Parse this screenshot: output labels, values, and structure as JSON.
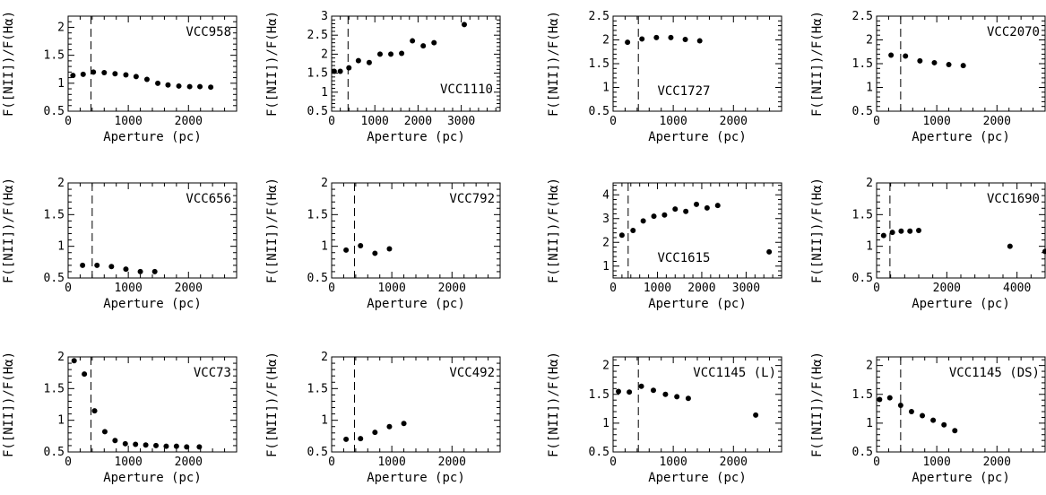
{
  "chart_data": [
    {
      "type": "scatter",
      "title": "VCC958",
      "xlabel": "Aperture (pc)",
      "ylabel": "F([NII])/F(Hα)",
      "xlim": [
        0,
        2800
      ],
      "ylim": [
        0.5,
        2.2
      ],
      "xticks": [
        0,
        1000,
        2000
      ],
      "yticks": [
        0.5,
        1,
        1.5,
        2
      ],
      "ytick_labels": [
        "0.5",
        "1",
        "1.5",
        "2"
      ],
      "vline": 380,
      "label_position": "top-right",
      "x": [
        80,
        250,
        420,
        600,
        780,
        960,
        1130,
        1310,
        1490,
        1660,
        1840,
        2020,
        2190,
        2370
      ],
      "y": [
        1.14,
        1.16,
        1.2,
        1.19,
        1.17,
        1.15,
        1.12,
        1.07,
        1.0,
        0.97,
        0.95,
        0.94,
        0.94,
        0.93
      ]
    },
    {
      "type": "scatter",
      "title": "VCC1110",
      "xlabel": "Aperture (pc)",
      "ylabel": "F([NII])/F(Hα)",
      "xlim": [
        0,
        3900
      ],
      "ylim": [
        0.5,
        3.0
      ],
      "xticks": [
        0,
        1000,
        2000,
        3000
      ],
      "yticks": [
        0.5,
        1,
        1.5,
        2,
        2.5,
        3
      ],
      "ytick_labels": [
        "0.5",
        "1",
        "1.5",
        "2",
        "2.5",
        "3"
      ],
      "vline": 380,
      "label_position": "bottom-right",
      "x": [
        60,
        200,
        400,
        620,
        870,
        1120,
        1370,
        1620,
        1870,
        2120,
        2370,
        3070
      ],
      "y": [
        1.55,
        1.55,
        1.64,
        1.83,
        1.78,
        2.0,
        2.0,
        2.02,
        2.35,
        2.22,
        2.3,
        2.78
      ]
    },
    {
      "type": "scatter",
      "title": "VCC1727",
      "xlabel": "Aperture (pc)",
      "ylabel": "F([NII])/F(Hα)",
      "xlim": [
        0,
        2800
      ],
      "ylim": [
        0.5,
        2.5
      ],
      "xticks": [
        0,
        1000,
        2000
      ],
      "yticks": [
        0.5,
        1,
        1.5,
        2,
        2.5
      ],
      "ytick_labels": [
        "0.5",
        "1",
        "1.5",
        "2",
        "2.5"
      ],
      "vline": 420,
      "label_position": "bottom-middle",
      "x": [
        240,
        480,
        720,
        960,
        1200,
        1440
      ],
      "y": [
        1.95,
        2.02,
        2.05,
        2.05,
        2.01,
        1.98
      ]
    },
    {
      "type": "scatter",
      "title": "VCC2070",
      "xlabel": "Aperture (pc)",
      "ylabel": "F([NII])/F(Hα)",
      "xlim": [
        0,
        2800
      ],
      "ylim": [
        0.5,
        2.5
      ],
      "xticks": [
        0,
        1000,
        2000
      ],
      "yticks": [
        0.5,
        1,
        1.5,
        2,
        2.5
      ],
      "ytick_labels": [
        "0.5",
        "1",
        "1.5",
        "2",
        "2.5"
      ],
      "vline": 400,
      "label_position": "top-right",
      "x": [
        240,
        480,
        720,
        960,
        1200,
        1440
      ],
      "y": [
        1.68,
        1.66,
        1.56,
        1.52,
        1.48,
        1.46
      ]
    },
    {
      "type": "scatter",
      "title": "VCC656",
      "xlabel": "Aperture (pc)",
      "ylabel": "F([NII])/F(Hα)",
      "xlim": [
        0,
        2800
      ],
      "ylim": [
        0.5,
        2.0
      ],
      "xticks": [
        0,
        1000,
        2000
      ],
      "yticks": [
        0.5,
        1,
        1.5,
        2
      ],
      "ytick_labels": [
        "0.5",
        "1",
        "1.5",
        "2"
      ],
      "vline": 400,
      "label_position": "top-right",
      "x": [
        240,
        480,
        720,
        960,
        1200,
        1440
      ],
      "y": [
        0.7,
        0.7,
        0.68,
        0.64,
        0.6,
        0.6
      ]
    },
    {
      "type": "scatter",
      "title": "VCC792",
      "xlabel": "Aperture (pc)",
      "ylabel": "F([NII])/F(Hα)",
      "xlim": [
        0,
        2800
      ],
      "ylim": [
        0.5,
        2.0
      ],
      "xticks": [
        0,
        1000,
        2000
      ],
      "yticks": [
        0.5,
        1,
        1.5,
        2
      ],
      "ytick_labels": [
        "0.5",
        "1",
        "1.5",
        "2"
      ],
      "vline": 380,
      "label_position": "top-right",
      "x": [
        240,
        480,
        720,
        960
      ],
      "y": [
        0.94,
        1.01,
        0.89,
        0.96
      ]
    },
    {
      "type": "scatter",
      "title": "VCC1615",
      "xlabel": "Aperture (pc)",
      "ylabel": "F([NII])/F(Hα)",
      "xlim": [
        0,
        3800
      ],
      "ylim": [
        0.5,
        4.5
      ],
      "xticks": [
        0,
        1000,
        2000,
        3000
      ],
      "yticks": [
        1,
        2,
        3,
        4
      ],
      "ytick_labels": [
        "1",
        "2",
        "3",
        "4"
      ],
      "vline": 340,
      "label_position": "bottom-middle",
      "x": [
        200,
        450,
        680,
        920,
        1160,
        1400,
        1640,
        1880,
        2120,
        2360,
        3520
      ],
      "y": [
        2.3,
        2.5,
        2.9,
        3.1,
        3.15,
        3.4,
        3.3,
        3.6,
        3.45,
        3.55,
        1.6
      ]
    },
    {
      "type": "scatter",
      "title": "VCC1690",
      "xlabel": "Aperture (pc)",
      "ylabel": "F([NII])/F(Hα)",
      "xlim": [
        0,
        4800
      ],
      "ylim": [
        0.5,
        2.0
      ],
      "xticks": [
        0,
        2000,
        4000
      ],
      "yticks": [
        0.5,
        1,
        1.5,
        2
      ],
      "ytick_labels": [
        "0.5",
        "1",
        "1.5",
        "2"
      ],
      "vline": 380,
      "label_position": "top-right",
      "x": [
        200,
        450,
        700,
        950,
        1200,
        3800,
        4800
      ],
      "y": [
        1.17,
        1.22,
        1.24,
        1.24,
        1.25,
        1.0,
        0.92
      ]
    },
    {
      "type": "scatter",
      "title": "VCC73",
      "xlabel": "Aperture (pc)",
      "ylabel": "F([NII])/F(Hα)",
      "xlim": [
        0,
        2800
      ],
      "ylim": [
        0.5,
        2.0
      ],
      "xticks": [
        0,
        1000,
        2000
      ],
      "yticks": [
        0.5,
        1,
        1.5,
        2
      ],
      "ytick_labels": [
        "0.5",
        "1",
        "1.5",
        "2"
      ],
      "vline": 380,
      "label_position": "top-right",
      "x": [
        100,
        270,
        440,
        610,
        780,
        950,
        1120,
        1290,
        1460,
        1630,
        1800,
        1970,
        2180
      ],
      "y": [
        1.94,
        1.73,
        1.15,
        0.82,
        0.68,
        0.63,
        0.62,
        0.61,
        0.6,
        0.59,
        0.59,
        0.58,
        0.58
      ]
    },
    {
      "type": "scatter",
      "title": "VCC492",
      "xlabel": "Aperture (pc)",
      "ylabel": "F([NII])/F(Hα)",
      "xlim": [
        0,
        2800
      ],
      "ylim": [
        0.5,
        2.0
      ],
      "xticks": [
        0,
        1000,
        2000
      ],
      "yticks": [
        0.5,
        1,
        1.5,
        2
      ],
      "ytick_labels": [
        "0.5",
        "1",
        "1.5",
        "2"
      ],
      "vline": 380,
      "label_position": "top-right",
      "x": [
        240,
        480,
        720,
        960,
        1200
      ],
      "y": [
        0.7,
        0.71,
        0.81,
        0.9,
        0.95
      ]
    },
    {
      "type": "scatter",
      "title": "VCC1145 (L)",
      "xlabel": "Aperture (pc)",
      "ylabel": "F([NII])/F(Hα)",
      "xlim": [
        0,
        2800
      ],
      "ylim": [
        0.5,
        2.15
      ],
      "xticks": [
        0,
        1000,
        2000
      ],
      "yticks": [
        0.5,
        1,
        1.5,
        2
      ],
      "ytick_labels": [
        "0.5",
        "1",
        "1.5",
        "2"
      ],
      "vline": 420,
      "label_position": "top-right",
      "x": [
        90,
        270,
        470,
        670,
        870,
        1060,
        1250,
        2370
      ],
      "y": [
        1.55,
        1.54,
        1.64,
        1.57,
        1.5,
        1.46,
        1.43,
        1.14
      ]
    },
    {
      "type": "scatter",
      "title": "VCC1145 (DS)",
      "xlabel": "Aperture (pc)",
      "ylabel": "F([NII])/F(Hα)",
      "xlim": [
        0,
        2800
      ],
      "ylim": [
        0.5,
        2.15
      ],
      "xticks": [
        0,
        1000,
        2000
      ],
      "yticks": [
        0.5,
        1,
        1.5,
        2
      ],
      "ytick_labels": [
        "0.5",
        "1",
        "1.5",
        "2"
      ],
      "vline": 400,
      "label_position": "top-right",
      "x": [
        50,
        220,
        400,
        580,
        760,
        940,
        1120,
        1300
      ],
      "y": [
        1.41,
        1.44,
        1.31,
        1.2,
        1.13,
        1.05,
        0.97,
        0.87
      ]
    }
  ]
}
